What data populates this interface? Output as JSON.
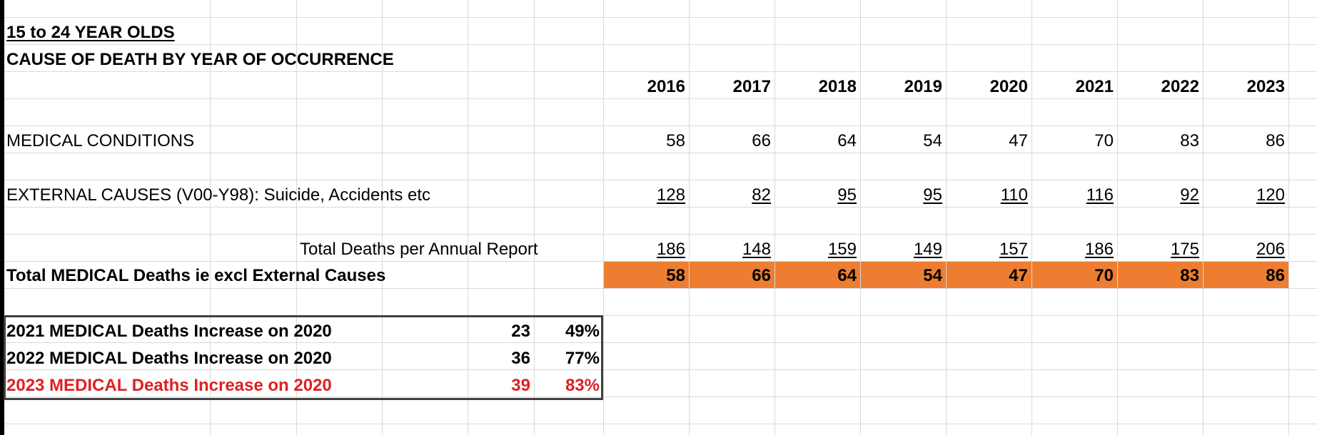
{
  "title": "15 to 24 YEAR OLDS",
  "subtitle": "CAUSE OF DEATH BY YEAR OF OCCURRENCE",
  "years": [
    "2016",
    "2017",
    "2018",
    "2019",
    "2020",
    "2021",
    "2022",
    "2023"
  ],
  "rows": {
    "medical": {
      "label": "MEDICAL CONDITIONS",
      "values": [
        "58",
        "66",
        "64",
        "54",
        "47",
        "70",
        "83",
        "86"
      ]
    },
    "external": {
      "label": "EXTERNAL CAUSES (V00-Y98): Suicide, Accidents etc",
      "values": [
        "128",
        "82",
        "95",
        "95",
        "110",
        "116",
        "92",
        "120"
      ]
    },
    "total": {
      "label": "Total Deaths per Annual Report",
      "values": [
        "186",
        "148",
        "159",
        "149",
        "157",
        "186",
        "175",
        "206"
      ]
    },
    "medical_total": {
      "label": "Total MEDICAL Deaths ie excl External Causes",
      "values": [
        "58",
        "66",
        "64",
        "54",
        "47",
        "70",
        "83",
        "86"
      ]
    }
  },
  "increases": [
    {
      "label": "2021 MEDICAL Deaths Increase on 2020",
      "count": "23",
      "pct": "49%"
    },
    {
      "label": "2022 MEDICAL Deaths Increase on 2020",
      "count": "36",
      "pct": "77%"
    },
    {
      "label": "2023 MEDICAL Deaths Increase on 2020",
      "count": "39",
      "pct": "83%"
    }
  ],
  "colors": {
    "highlight": "#ed7d31",
    "alert": "#e02020",
    "gridline": "#d9d9d9"
  }
}
